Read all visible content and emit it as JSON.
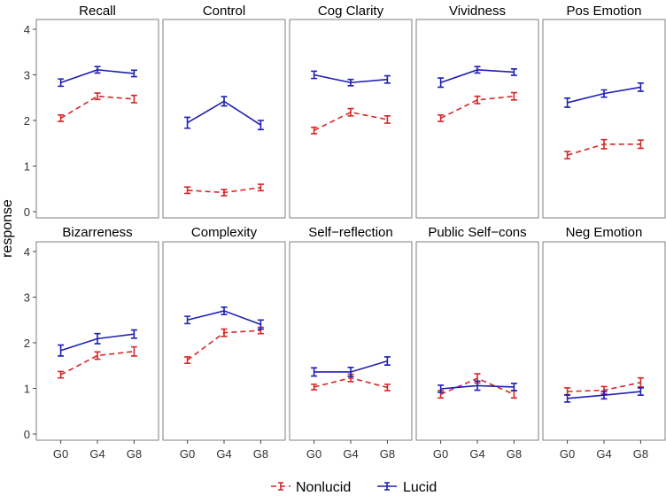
{
  "chart_data": {
    "type": "line",
    "layout": "faceted 2x5 grid",
    "ylabel": "response",
    "xlabel": "",
    "categories": [
      "G0",
      "G4",
      "G8"
    ],
    "ylim": [
      0,
      4
    ],
    "yticks": [
      0,
      1,
      2,
      3,
      4
    ],
    "grid": false,
    "legend_position": "bottom",
    "legend": [
      {
        "name": "Nonlucid",
        "color": "#d62728",
        "style": "dashed"
      },
      {
        "name": "Lucid",
        "color": "#1f1fb4",
        "style": "solid"
      }
    ],
    "panels": [
      {
        "title": "Recall",
        "series": [
          {
            "name": "Nonlucid",
            "values": [
              2.05,
              2.53,
              2.47
            ],
            "errors": [
              0.07,
              0.07,
              0.08
            ]
          },
          {
            "name": "Lucid",
            "values": [
              2.83,
              3.11,
              3.03
            ],
            "errors": [
              0.08,
              0.07,
              0.07
            ]
          }
        ]
      },
      {
        "title": "Control",
        "series": [
          {
            "name": "Nonlucid",
            "values": [
              0.47,
              0.42,
              0.53
            ],
            "errors": [
              0.07,
              0.07,
              0.07
            ]
          },
          {
            "name": "Lucid",
            "values": [
              1.95,
              2.42,
              1.9
            ],
            "errors": [
              0.12,
              0.1,
              0.1
            ]
          }
        ]
      },
      {
        "title": "Cog Clarity",
        "series": [
          {
            "name": "Nonlucid",
            "values": [
              1.78,
              2.18,
              2.02
            ],
            "errors": [
              0.07,
              0.08,
              0.08
            ]
          },
          {
            "name": "Lucid",
            "values": [
              3.0,
              2.83,
              2.9
            ],
            "errors": [
              0.08,
              0.07,
              0.08
            ]
          }
        ]
      },
      {
        "title": "Vividness",
        "series": [
          {
            "name": "Nonlucid",
            "values": [
              2.05,
              2.45,
              2.53
            ],
            "errors": [
              0.07,
              0.08,
              0.08
            ]
          },
          {
            "name": "Lucid",
            "values": [
              2.83,
              3.11,
              3.06
            ],
            "errors": [
              0.1,
              0.07,
              0.07
            ]
          }
        ]
      },
      {
        "title": "Pos Emotion",
        "series": [
          {
            "name": "Nonlucid",
            "values": [
              1.24,
              1.48,
              1.48
            ],
            "errors": [
              0.08,
              0.1,
              0.09
            ]
          },
          {
            "name": "Lucid",
            "values": [
              2.39,
              2.59,
              2.73
            ],
            "errors": [
              0.1,
              0.08,
              0.09
            ]
          }
        ]
      },
      {
        "title": "Bizarreness",
        "series": [
          {
            "name": "Nonlucid",
            "values": [
              1.3,
              1.72,
              1.81
            ],
            "errors": [
              0.07,
              0.08,
              0.1
            ]
          },
          {
            "name": "Lucid",
            "values": [
              1.83,
              2.09,
              2.19
            ],
            "errors": [
              0.12,
              0.11,
              0.09
            ]
          }
        ]
      },
      {
        "title": "Complexity",
        "series": [
          {
            "name": "Nonlucid",
            "values": [
              1.62,
              2.22,
              2.27
            ],
            "errors": [
              0.07,
              0.08,
              0.07
            ]
          },
          {
            "name": "Lucid",
            "values": [
              2.5,
              2.7,
              2.4
            ],
            "errors": [
              0.08,
              0.08,
              0.1
            ]
          }
        ]
      },
      {
        "title": "Self−reflection",
        "series": [
          {
            "name": "Nonlucid",
            "values": [
              1.03,
              1.23,
              1.02
            ],
            "errors": [
              0.06,
              0.08,
              0.07
            ]
          },
          {
            "name": "Lucid",
            "values": [
              1.36,
              1.36,
              1.6
            ],
            "errors": [
              0.09,
              0.1,
              0.09
            ]
          }
        ]
      },
      {
        "title": "Public Self−cons",
        "series": [
          {
            "name": "Nonlucid",
            "values": [
              0.87,
              1.22,
              0.87
            ],
            "errors": [
              0.08,
              0.1,
              0.08
            ]
          },
          {
            "name": "Lucid",
            "values": [
              0.99,
              1.06,
              1.03
            ],
            "errors": [
              0.08,
              0.1,
              0.08
            ]
          }
        ]
      },
      {
        "title": "Neg Emotion",
        "series": [
          {
            "name": "Nonlucid",
            "values": [
              0.93,
              0.96,
              1.13
            ],
            "errors": [
              0.08,
              0.08,
              0.1
            ]
          },
          {
            "name": "Lucid",
            "values": [
              0.78,
              0.85,
              0.93
            ],
            "errors": [
              0.08,
              0.08,
              0.08
            ]
          }
        ]
      }
    ]
  }
}
